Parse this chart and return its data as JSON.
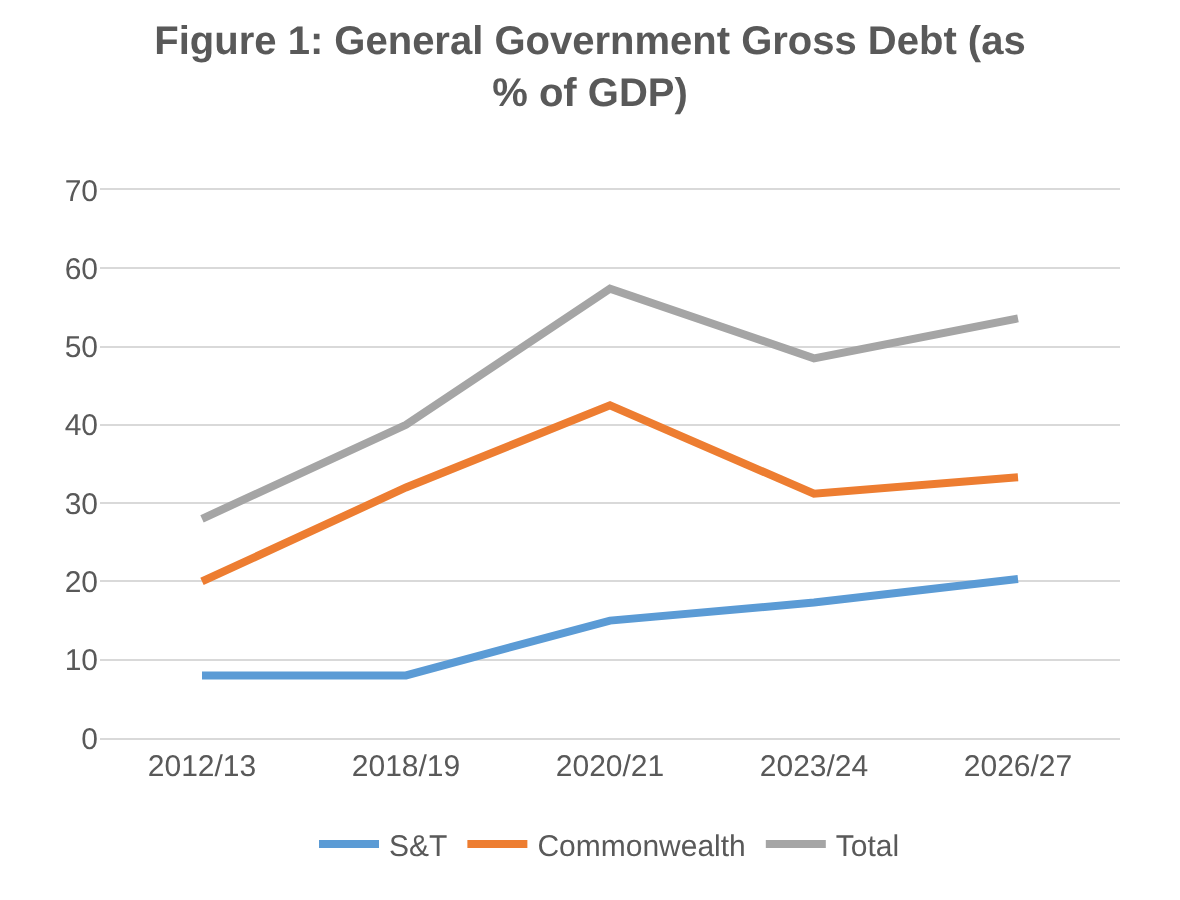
{
  "chart_data": {
    "type": "line",
    "title": "Figure 1: General Government Gross Debt (as % of GDP)",
    "categories": [
      "2012/13",
      "2018/19",
      "2020/21",
      "2023/24",
      "2026/27"
    ],
    "series": [
      {
        "name": "S&T",
        "color": "#5b9bd5",
        "values": [
          8,
          8,
          15,
          17.3,
          20.3
        ]
      },
      {
        "name": "Commonwealth",
        "color": "#ed7d31",
        "values": [
          20,
          32,
          42.5,
          31.2,
          33.3
        ]
      },
      {
        "name": "Total",
        "color": "#a5a5a5",
        "values": [
          28,
          40,
          57.4,
          48.5,
          53.6
        ]
      }
    ],
    "ylim": [
      0,
      70
    ],
    "yticks": [
      0,
      10,
      20,
      30,
      40,
      50,
      60,
      70
    ],
    "grid": "y",
    "legend": "bottom",
    "line_style": "solid",
    "marker": "none"
  }
}
